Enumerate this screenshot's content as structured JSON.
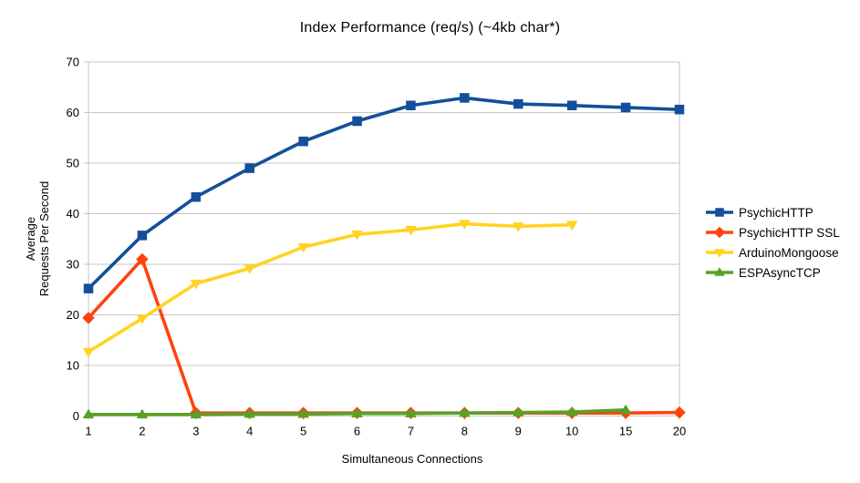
{
  "chart_data": {
    "type": "line",
    "title": "Index Performance (req/s) (~4kb char*)",
    "xlabel": "Simultaneous Connections",
    "ylabel": "Average Requests Per Second",
    "ylabel_lines": [
      "Average",
      "Requests Per Second"
    ],
    "categories": [
      "1",
      "2",
      "3",
      "4",
      "5",
      "6",
      "7",
      "8",
      "9",
      "10",
      "15",
      "20"
    ],
    "ylim": [
      0,
      70
    ],
    "yticks": [
      0,
      10,
      20,
      30,
      40,
      50,
      60,
      70
    ],
    "grid": true,
    "legend_position": "right",
    "colors": {
      "grid": "#c6c6c6",
      "background": "#ffffff",
      "text": "#000000"
    },
    "series": [
      {
        "name": "PsychicHTTP",
        "color": "#134F9A",
        "marker": "square",
        "values": [
          25.2,
          35.7,
          43.3,
          49,
          54.3,
          58.3,
          61.4,
          62.9,
          61.7,
          61.4,
          61,
          60.6
        ]
      },
      {
        "name": "PsychicHTTP SSL",
        "color": "#FF420E",
        "marker": "diamond",
        "values": [
          19.4,
          31,
          0.6,
          0.6,
          0.6,
          0.6,
          0.6,
          0.6,
          0.6,
          0.6,
          0.6,
          0.7
        ]
      },
      {
        "name": "ArduinoMongoose",
        "color": "#FFD320",
        "marker": "triangle-down",
        "values": [
          12.7,
          19.3,
          26.2,
          29.2,
          33.4,
          35.9,
          36.8,
          38,
          37.5,
          37.8,
          null,
          null
        ]
      },
      {
        "name": "ESPAsyncTCP",
        "color": "#58A127",
        "marker": "triangle-up",
        "values": [
          0.3,
          0.3,
          0.3,
          0.4,
          0.4,
          0.5,
          0.5,
          0.6,
          0.7,
          0.8,
          1.2,
          null
        ]
      }
    ]
  }
}
